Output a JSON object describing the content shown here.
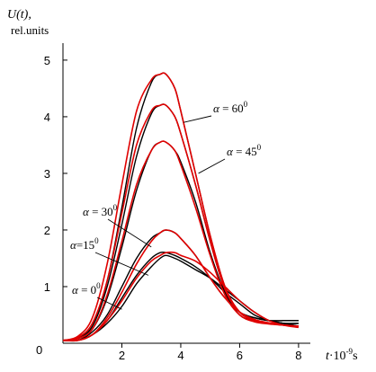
{
  "chart_data": {
    "type": "line",
    "ylabel": "U(t),",
    "yunit": "rel.units",
    "xlabel_main": "t",
    "xlabel_sup_prefix": "·10",
    "xlabel_sup": "-9",
    "xlabel_suffix": "s",
    "origin_label": "0",
    "xlim": [
      0,
      8.4
    ],
    "ylim": [
      0,
      5.3
    ],
    "xticks": [
      "2",
      "4",
      "6",
      "8"
    ],
    "yticks": [
      "1",
      "2",
      "3",
      "4",
      "5"
    ],
    "xtick_values": [
      2,
      4,
      6,
      8
    ],
    "ytick_values": [
      1,
      2,
      3,
      4,
      5
    ],
    "grid": false,
    "colors": {
      "measured": "#000000",
      "model": "#e00000"
    },
    "x": [
      0,
      0.5,
      1.0,
      1.5,
      2.0,
      2.5,
      3.0,
      3.3,
      3.5,
      3.8,
      4.0,
      4.5,
      5.0,
      5.5,
      6.0,
      6.5,
      7.0,
      7.5,
      8.0
    ],
    "series": [
      {
        "values": [
          0.05,
          0.05,
          0.15,
          0.35,
          0.65,
          1.05,
          1.35,
          1.5,
          1.55,
          1.5,
          1.45,
          1.3,
          1.15,
          0.95,
          0.75,
          0.55,
          0.4,
          0.35,
          0.3
        ],
        "kind": "measured"
      },
      {
        "values": [
          0.05,
          0.05,
          0.15,
          0.4,
          0.8,
          1.2,
          1.5,
          1.6,
          1.6,
          1.55,
          1.5,
          1.35,
          1.15,
          0.9,
          0.7,
          0.5,
          0.4,
          0.35,
          0.3
        ],
        "kind": "measured"
      },
      {
        "values": [
          0.05,
          0.05,
          0.2,
          0.5,
          1.0,
          1.5,
          1.85,
          1.95,
          2.0,
          1.95,
          1.85,
          1.55,
          1.15,
          0.8,
          0.55,
          0.45,
          0.4,
          0.35,
          0.35
        ],
        "kind": "measured"
      },
      {
        "values": [
          0.05,
          0.08,
          0.25,
          0.8,
          1.7,
          2.7,
          3.4,
          3.55,
          3.55,
          3.4,
          3.2,
          2.5,
          1.6,
          0.9,
          0.5,
          0.4,
          0.35,
          0.35,
          0.35
        ],
        "kind": "measured"
      },
      {
        "values": [
          0.05,
          0.1,
          0.3,
          1.0,
          2.1,
          3.3,
          4.05,
          4.2,
          4.2,
          4.0,
          3.7,
          2.8,
          1.8,
          0.95,
          0.55,
          0.45,
          0.4,
          0.4,
          0.4
        ],
        "kind": "measured"
      },
      {
        "values": [
          0.05,
          0.1,
          0.35,
          1.1,
          2.4,
          3.8,
          4.6,
          4.75,
          4.75,
          4.5,
          4.1,
          3.0,
          1.9,
          1.0,
          0.55,
          0.45,
          0.4,
          0.4,
          0.4
        ],
        "kind": "measured"
      },
      {
        "values": [
          0.05,
          0.05,
          0.15,
          0.4,
          0.75,
          1.15,
          1.45,
          1.55,
          1.6,
          1.6,
          1.55,
          1.45,
          1.25,
          1.0,
          0.75,
          0.55,
          0.4,
          0.32,
          0.28
        ],
        "kind": "model"
      },
      {
        "values": [
          0.05,
          0.05,
          0.15,
          0.45,
          0.9,
          1.4,
          1.8,
          1.95,
          2.0,
          1.95,
          1.85,
          1.55,
          1.15,
          0.8,
          0.55,
          0.42,
          0.36,
          0.32,
          0.3
        ],
        "kind": "model"
      },
      {
        "values": [
          0.05,
          0.08,
          0.25,
          0.85,
          1.8,
          2.8,
          3.4,
          3.55,
          3.55,
          3.4,
          3.15,
          2.4,
          1.55,
          0.85,
          0.5,
          0.38,
          0.34,
          0.32,
          0.3
        ],
        "kind": "model"
      },
      {
        "values": [
          0.05,
          0.1,
          0.35,
          1.1,
          2.3,
          3.5,
          4.1,
          4.2,
          4.2,
          4.0,
          3.7,
          2.8,
          1.8,
          0.95,
          0.55,
          0.4,
          0.35,
          0.32,
          0.3
        ],
        "kind": "model"
      },
      {
        "values": [
          0.05,
          0.12,
          0.45,
          1.4,
          2.8,
          4.1,
          4.65,
          4.75,
          4.75,
          4.5,
          4.1,
          3.0,
          1.9,
          1.0,
          0.55,
          0.4,
          0.35,
          0.32,
          0.3
        ],
        "kind": "model"
      }
    ],
    "annotations": [
      {
        "prefix": "α",
        "text": " = 0",
        "sup": "0",
        "target": [
          2.0,
          0.6
        ]
      },
      {
        "prefix": "α",
        "text": "=15",
        "sup": "0",
        "target": [
          2.9,
          1.2
        ]
      },
      {
        "prefix": "α",
        "text": " = 30",
        "sup": "0",
        "target": [
          3.0,
          1.7
        ]
      },
      {
        "prefix": "α",
        "text": " = 45",
        "sup": "0",
        "target": [
          4.6,
          3.0
        ]
      },
      {
        "prefix": "α",
        "text": " = 60",
        "sup": "0",
        "target": [
          4.1,
          3.9
        ]
      }
    ]
  }
}
